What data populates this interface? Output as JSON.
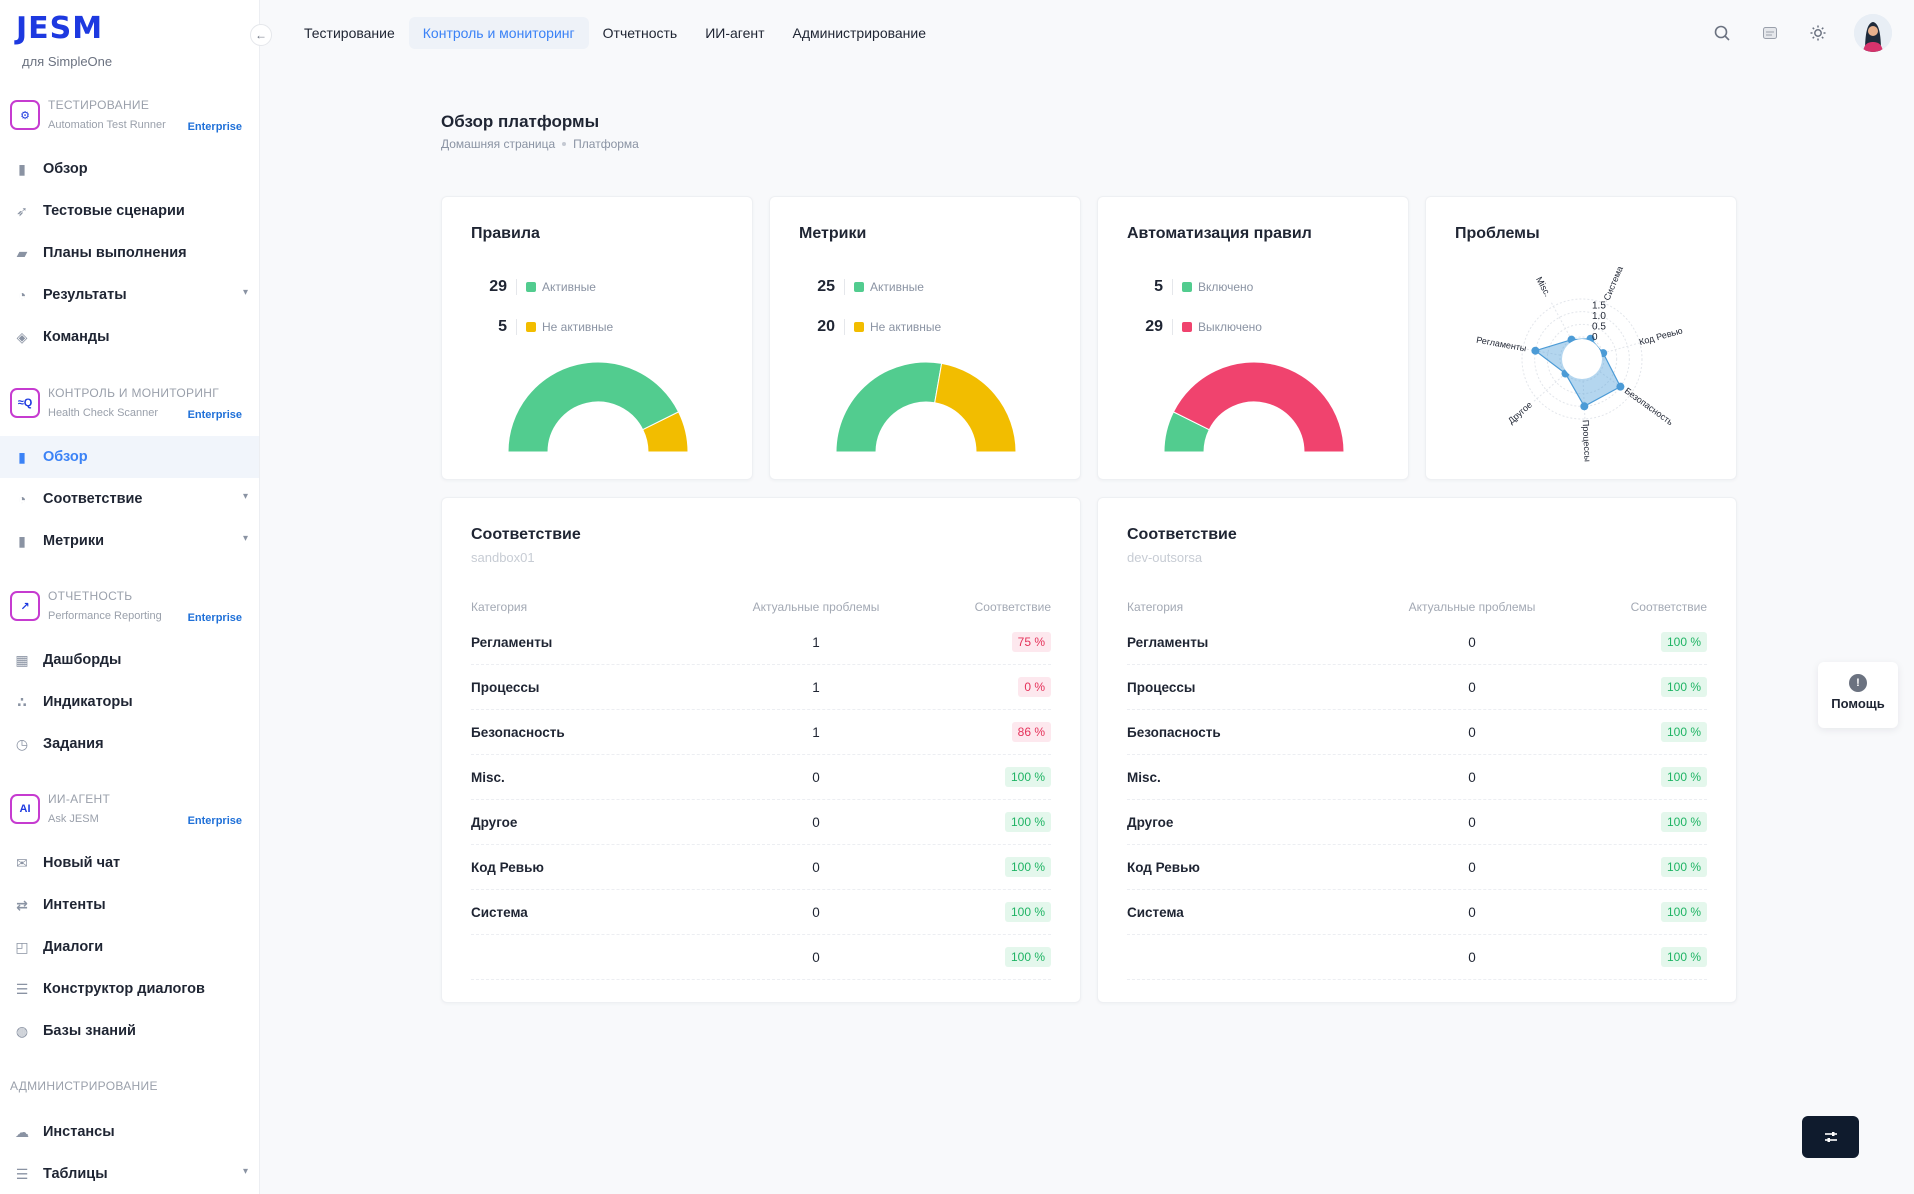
{
  "brand": {
    "logo": "JESM",
    "sub": "для SimpleOne"
  },
  "sidebar": {
    "collapse_icon": "←",
    "sections": [
      {
        "title": "ТЕСТИРОВАНИЕ",
        "sub": "Automation Test Runner",
        "badge": "Enterprise",
        "items": [
          {
            "label": "Обзор",
            "icon": "chart-icon"
          },
          {
            "label": "Тестовые сценарии",
            "icon": "rocket-icon"
          },
          {
            "label": "Планы выполнения",
            "icon": "book-icon"
          },
          {
            "label": "Результаты",
            "icon": "pie-icon",
            "expand": true
          },
          {
            "label": "Команды",
            "icon": "layers-icon"
          }
        ]
      },
      {
        "title": "КОНТРОЛЬ И МОНИТОРИНГ",
        "sub": "Health Check Scanner",
        "badge": "Enterprise",
        "items": [
          {
            "label": "Обзор",
            "icon": "chart-icon",
            "active": true
          },
          {
            "label": "Соответствие",
            "icon": "pie-icon",
            "expand": true
          },
          {
            "label": "Метрики",
            "icon": "chart-icon",
            "expand": true
          }
        ]
      },
      {
        "title": "ОТЧЕТНОСТЬ",
        "sub": "Performance Reporting",
        "badge": "Enterprise",
        "items": [
          {
            "label": "Дашборды",
            "icon": "grid-icon"
          },
          {
            "label": "Индикаторы",
            "icon": "dots-icon"
          },
          {
            "label": "Задания",
            "icon": "clock-icon"
          }
        ]
      },
      {
        "title": "ИИ-АГЕНТ",
        "sub": "Ask JESM",
        "badge": "Enterprise",
        "items": [
          {
            "label": "Новый чат",
            "icon": "chat-icon"
          },
          {
            "label": "Интенты",
            "icon": "swap-icon"
          },
          {
            "label": "Диалоги",
            "icon": "dialog-icon"
          },
          {
            "label": "Конструктор диалогов",
            "icon": "list-icon"
          },
          {
            "label": "Базы знаний",
            "icon": "disk-icon"
          }
        ]
      }
    ],
    "admin": {
      "title": "АДМИНИСТРИРОВАНИЕ",
      "items": [
        {
          "label": "Инстансы",
          "icon": "cloud-icon"
        },
        {
          "label": "Таблицы",
          "icon": "table-icon",
          "expand": true
        }
      ]
    }
  },
  "topnav": {
    "tabs": [
      "Тестирование",
      "Контроль и мониторинг",
      "Отчетность",
      "ИИ-агент",
      "Администрирование"
    ],
    "active_index": 1,
    "icons": [
      "search-icon",
      "notes-icon",
      "sun-icon"
    ]
  },
  "page": {
    "title": "Обзор платформы",
    "breadcrumb": [
      "Домашняя страница",
      "Платформа"
    ]
  },
  "colors": {
    "green": "#52cc8f",
    "yellow": "#f2bd00",
    "red": "#f0436e"
  },
  "cards": [
    {
      "title": "Правила",
      "stats": [
        {
          "value": 29,
          "label": "Активные",
          "color": "#52cc8f"
        },
        {
          "value": 5,
          "label": "Не активные",
          "color": "#f2bd00"
        }
      ]
    },
    {
      "title": "Метрики",
      "stats": [
        {
          "value": 25,
          "label": "Активные",
          "color": "#52cc8f"
        },
        {
          "value": 20,
          "label": "Не активные",
          "color": "#f2bd00"
        }
      ]
    },
    {
      "title": "Автоматизация правил",
      "stats": [
        {
          "value": 5,
          "label": "Включено",
          "color": "#52cc8f"
        },
        {
          "value": 29,
          "label": "Выключено",
          "color": "#f0436e"
        }
      ]
    }
  ],
  "problems": {
    "title": "Проблемы",
    "chart_data": {
      "type": "radar",
      "axes": [
        "Система",
        "Код Ревью",
        "Безопасность",
        "Процессы",
        "Другое",
        "Регламенты",
        "Misc."
      ],
      "values": [
        0,
        0,
        1,
        1,
        0,
        1,
        0
      ],
      "ticks": [
        "0",
        "0.5",
        "1.0",
        "1.5"
      ],
      "rmax": 1.5
    }
  },
  "compliance": [
    {
      "title": "Соответствие",
      "sub": "sandbox01",
      "headers": [
        "Категория",
        "Актуальные проблемы",
        "Соответствие"
      ],
      "rows": [
        {
          "category": "Регламенты",
          "issues": "1",
          "value": "75 %",
          "status": "bad"
        },
        {
          "category": "Процессы",
          "issues": "1",
          "value": "0 %",
          "status": "bad"
        },
        {
          "category": "Безопасность",
          "issues": "1",
          "value": "86 %",
          "status": "bad"
        },
        {
          "category": "Misc.",
          "issues": "0",
          "value": "100 %",
          "status": "good"
        },
        {
          "category": "Другое",
          "issues": "0",
          "value": "100 %",
          "status": "good"
        },
        {
          "category": "Код Ревью",
          "issues": "0",
          "value": "100 %",
          "status": "good"
        },
        {
          "category": "Система",
          "issues": "0",
          "value": "100 %",
          "status": "good"
        },
        {
          "category": "",
          "issues": "0",
          "value": "100 %",
          "status": "good"
        }
      ]
    },
    {
      "title": "Соответствие",
      "sub": "dev-outsorsa",
      "headers": [
        "Категория",
        "Актуальные проблемы",
        "Соответствие"
      ],
      "rows": [
        {
          "category": "Регламенты",
          "issues": "0",
          "value": "100 %",
          "status": "good"
        },
        {
          "category": "Процессы",
          "issues": "0",
          "value": "100 %",
          "status": "good"
        },
        {
          "category": "Безопасность",
          "issues": "0",
          "value": "100 %",
          "status": "good"
        },
        {
          "category": "Misc.",
          "issues": "0",
          "value": "100 %",
          "status": "good"
        },
        {
          "category": "Другое",
          "issues": "0",
          "value": "100 %",
          "status": "good"
        },
        {
          "category": "Код Ревью",
          "issues": "0",
          "value": "100 %",
          "status": "good"
        },
        {
          "category": "Система",
          "issues": "0",
          "value": "100 %",
          "status": "good"
        },
        {
          "category": "",
          "issues": "0",
          "value": "100 %",
          "status": "good"
        }
      ]
    }
  ],
  "help": {
    "label": "Помощь"
  }
}
